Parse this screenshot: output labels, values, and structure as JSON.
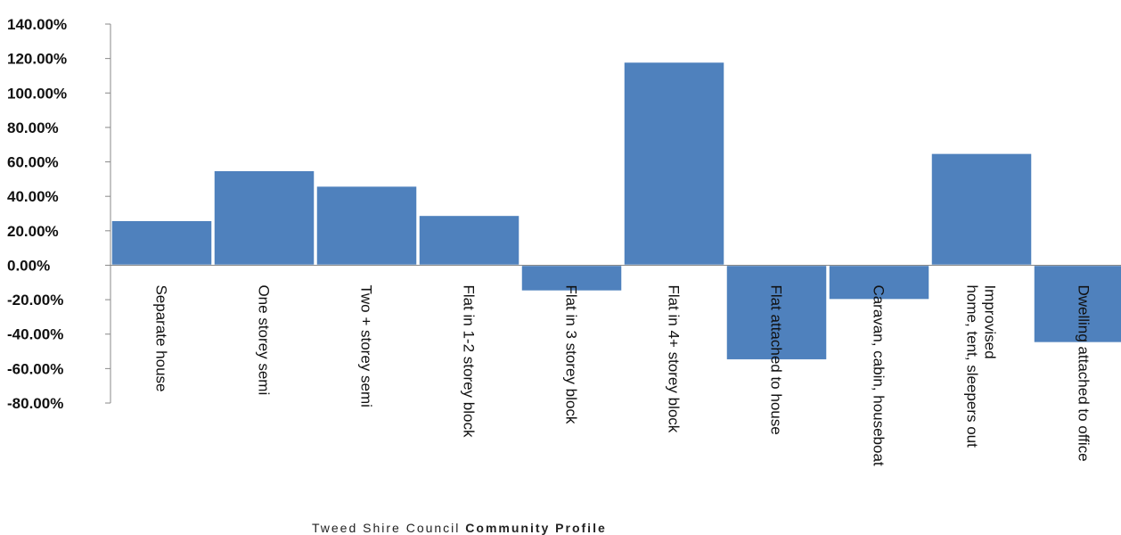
{
  "footer": {
    "organisation": "Tweed Shire Council",
    "section": "Community Profile"
  },
  "colors": {
    "bar": "#4f81bd",
    "axis": "#888888",
    "text": "#111111"
  },
  "chart_data": {
    "type": "bar",
    "title": "",
    "xlabel": "",
    "ylabel": "",
    "ylim": [
      -80,
      140
    ],
    "y_unit": "%",
    "yticks": [
      140,
      120,
      100,
      80,
      60,
      40,
      20,
      0,
      -20,
      -40,
      -60,
      -80
    ],
    "ytick_labels": [
      "140.00%",
      "120.00%",
      "100.00%",
      "80.00%",
      "60.00%",
      "40.00%",
      "20.00%",
      "0.00%",
      "-20.00%",
      "-40.00%",
      "-60.00%",
      "-80.00%"
    ],
    "grid": false,
    "legend": "none",
    "categories": [
      "Separate house",
      "One storey semi",
      "Two + storey semi",
      "Flat in 1-2 storey block",
      "Flat in 3 storey block",
      "Flat in 4+ storey block",
      "Flat attached to house",
      "Caravan, cabin, houseboat",
      "Improvised home, tent, sleepers out",
      "Dwelling attached to office"
    ],
    "category_label_lines": [
      [
        "Separate house"
      ],
      [
        "One storey semi"
      ],
      [
        "Two + storey semi"
      ],
      [
        "Flat in 1-2 storey block"
      ],
      [
        "Flat in 3 storey block"
      ],
      [
        "Flat in 4+ storey block"
      ],
      [
        "Flat attached to house"
      ],
      [
        "Caravan, cabin, houseboat"
      ],
      [
        "Improvised",
        "home, tent, sleepers out"
      ],
      [
        "Dwelling attached to office"
      ]
    ],
    "values": [
      26,
      55,
      46,
      29,
      -15,
      118,
      -55,
      -20,
      65,
      -45
    ]
  }
}
